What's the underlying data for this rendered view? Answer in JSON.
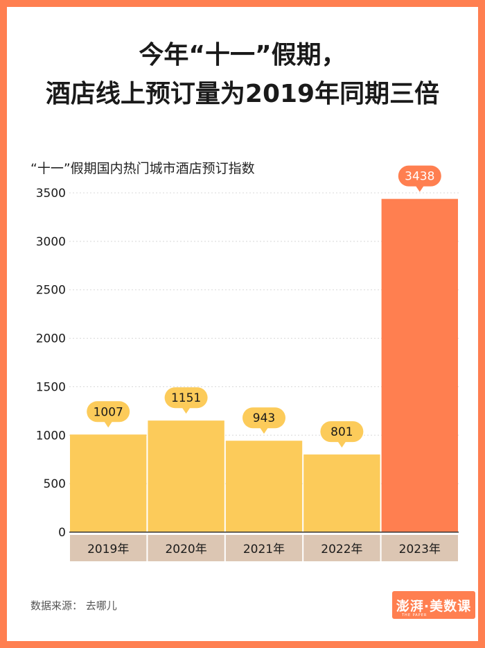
{
  "title_line1": "今年“十一”假期，",
  "title_line2": "酒店线上预订量为2019年同期三倍",
  "chart_data": {
    "type": "bar",
    "title": "今年“十一”假期，酒店线上预订量为2019年同期三倍",
    "subtitle": "“十一”假期国内热门城市酒店预订指数",
    "categories": [
      "2019年",
      "2020年",
      "2021年",
      "2022年",
      "2023年"
    ],
    "values": [
      1007,
      1151,
      943,
      801,
      3438
    ],
    "yticks": [
      0,
      500,
      1000,
      1500,
      2000,
      2500,
      3000,
      3500
    ],
    "ylim": [
      0,
      3500
    ],
    "xlabel": "",
    "ylabel": "",
    "grid": true,
    "colors": {
      "bar": "#fccb5a",
      "highlight_bar": "#ff7f50",
      "label_bubble": "#fccb5a",
      "highlight_bubble": "#ff7f50",
      "category_band": "#dcc6b3",
      "gridline": "#d8d8d8"
    },
    "highlight_index": 4
  },
  "source": "数据来源：  去哪儿",
  "logo": {
    "text": "澎湃·美数课",
    "subtext": "THE PAPER"
  }
}
